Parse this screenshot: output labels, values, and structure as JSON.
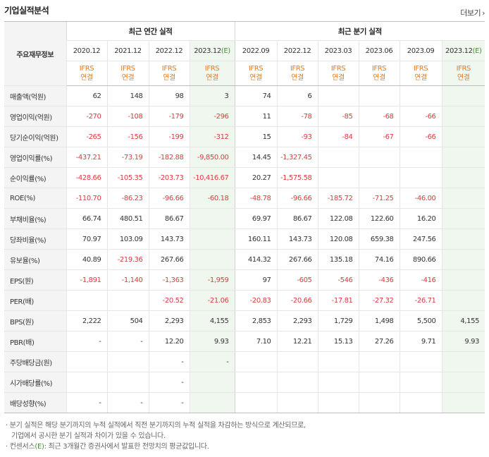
{
  "header": {
    "title": "기업실적분석",
    "more_label": "더보기",
    "more_icon": "chevron-right-icon"
  },
  "table": {
    "corner_label": "주요재무정보",
    "annual_group": "최근 연간 실적",
    "quarterly_group": "최근 분기 실적",
    "columns": [
      {
        "period": "2020.12",
        "est": "",
        "ifrs": "IFRS",
        "basis": "연결"
      },
      {
        "period": "2021.12",
        "est": "",
        "ifrs": "IFRS",
        "basis": "연결"
      },
      {
        "period": "2022.12",
        "est": "",
        "ifrs": "IFRS",
        "basis": "연결"
      },
      {
        "period": "2023.12",
        "est": "(E)",
        "ifrs": "IFRS",
        "basis": "연결"
      },
      {
        "period": "2022.09",
        "est": "",
        "ifrs": "IFRS",
        "basis": "연결"
      },
      {
        "period": "2022.12",
        "est": "",
        "ifrs": "IFRS",
        "basis": "연결"
      },
      {
        "period": "2023.03",
        "est": "",
        "ifrs": "IFRS",
        "basis": "연결"
      },
      {
        "period": "2023.06",
        "est": "",
        "ifrs": "IFRS",
        "basis": "연결"
      },
      {
        "period": "2023.09",
        "est": "",
        "ifrs": "IFRS",
        "basis": "연결"
      },
      {
        "period": "2023.12",
        "est": "(E)",
        "ifrs": "IFRS",
        "basis": "연결"
      }
    ],
    "rows": [
      {
        "label": "매출액(억원)",
        "values": [
          "62",
          "148",
          "98",
          "3",
          "74",
          "6",
          "",
          "",
          "",
          ""
        ]
      },
      {
        "label": "영업이익(억원)",
        "values": [
          "-270",
          "-108",
          "-179",
          "-296",
          "11",
          "-78",
          "-85",
          "-68",
          "-66",
          ""
        ]
      },
      {
        "label": "당기순이익(억원)",
        "values": [
          "-265",
          "-156",
          "-199",
          "-312",
          "15",
          "-93",
          "-84",
          "-67",
          "-66",
          ""
        ]
      },
      {
        "label": "영업이익률(%)",
        "values": [
          "-437.21",
          "-73.19",
          "-182.88",
          "-9,850.00",
          "14.45",
          "-1,327.45",
          "",
          "",
          "",
          ""
        ]
      },
      {
        "label": "순이익률(%)",
        "values": [
          "-428.66",
          "-105.35",
          "-203.73",
          "-10,416.67",
          "20.27",
          "-1,575.58",
          "",
          "",
          "",
          ""
        ]
      },
      {
        "label": "ROE(%)",
        "values": [
          "-110.70",
          "-86.23",
          "-96.66",
          "-60.18",
          "-48.78",
          "-96.66",
          "-185.72",
          "-71.25",
          "-46.00",
          ""
        ]
      },
      {
        "label": "부채비율(%)",
        "values": [
          "66.74",
          "480.51",
          "86.67",
          "",
          "69.97",
          "86.67",
          "122.08",
          "122.60",
          "16.20",
          ""
        ]
      },
      {
        "label": "당좌비율(%)",
        "values": [
          "70.97",
          "103.09",
          "143.73",
          "",
          "160.11",
          "143.73",
          "120.08",
          "659.38",
          "247.56",
          ""
        ]
      },
      {
        "label": "유보율(%)",
        "values": [
          "40.89",
          "-219.36",
          "267.66",
          "",
          "414.32",
          "267.66",
          "135.18",
          "74.16",
          "890.66",
          ""
        ]
      },
      {
        "label": "EPS(원)",
        "values": [
          "-1,891",
          "-1,140",
          "-1,363",
          "-1,959",
          "97",
          "-605",
          "-546",
          "-436",
          "-416",
          ""
        ]
      },
      {
        "label": "PER(배)",
        "values": [
          "",
          "",
          "-20.52",
          "-21.06",
          "-20.83",
          "-20.66",
          "-17.81",
          "-27.32",
          "-26.71",
          ""
        ]
      },
      {
        "label": "BPS(원)",
        "values": [
          "2,222",
          "504",
          "2,293",
          "4,155",
          "2,853",
          "2,293",
          "1,729",
          "1,498",
          "5,500",
          "4,155"
        ]
      },
      {
        "label": "PBR(배)",
        "values": [
          "-",
          "-",
          "12.20",
          "9.93",
          "7.10",
          "12.21",
          "15.13",
          "27.26",
          "9.71",
          "9.93"
        ]
      },
      {
        "label": "주당배당금(원)",
        "values": [
          "",
          "",
          "-",
          "-",
          "",
          "",
          "",
          "",
          "",
          ""
        ]
      },
      {
        "label": "시가배당률(%)",
        "values": [
          "",
          "",
          "-",
          "",
          "",
          "",
          "",
          "",
          "",
          ""
        ]
      },
      {
        "label": "배당성향(%)",
        "values": [
          "-",
          "-",
          "-",
          "",
          "",
          "",
          "",
          "",
          "",
          ""
        ]
      }
    ]
  },
  "notes": {
    "line1": "· 분기 실적은 해당 분기까지의 누적 실적에서 직전 분기까지의 누적 실적을 차감하는 방식으로 계산되므로,",
    "line2": "기업에서 공시한 분기 실적과 차이가 있을 수 있습니다.",
    "line3_prefix": "· 컨센서스",
    "line3_e": "(E)",
    "line3_suffix": ": 최근 3개월간 증권사에서 발표한 전망치의 평균값입니다."
  },
  "colors": {
    "negative": "#e0393e",
    "ifrs": "#e47a1f",
    "estimate_bg": "#f0f7ef",
    "estimate_text": "#4b8d3d"
  }
}
